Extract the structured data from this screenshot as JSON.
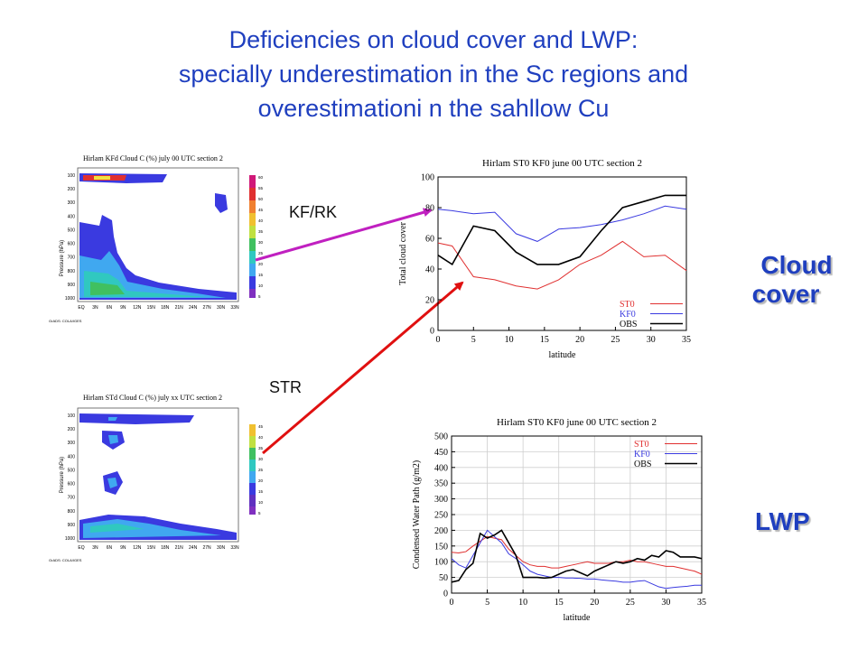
{
  "slide": {
    "title_line1": "Deficiencies on cloud cover and LWP:",
    "title_line2": "specially underestimation in the Sc regions and",
    "title_line3": "overestimationi n the sahllow Cu",
    "arrow_top_label": "KF/RK",
    "arrow_bottom_label": "STR",
    "side_label_cloud_line1": "Cloud",
    "side_label_cloud_line2": "cover",
    "side_label_lwp": "LWP"
  },
  "crosssections": [
    {
      "title": "Hirlam KFd Cloud C (%) july 00 UTC section 2",
      "ylabel": "Pressure (hPa)",
      "yticks": [
        "100",
        "200",
        "300",
        "400",
        "500",
        "600",
        "700",
        "800",
        "900",
        "1000"
      ],
      "xticks": [
        "EQ",
        "3N",
        "6N",
        "9N",
        "12N",
        "15N",
        "18N",
        "21N",
        "24N",
        "27N",
        "30N",
        "33N"
      ],
      "colorbar_ticks": [
        "60",
        "55",
        "50",
        "45",
        "40",
        "35",
        "30",
        "25",
        "20",
        "15",
        "10",
        "5"
      ],
      "footer": "GrADS: COLA/IGES"
    },
    {
      "title": "Hirlam STd Cloud C (%) july xx UTC section 2",
      "ylabel": "Pressure (hPa)",
      "yticks": [
        "100",
        "200",
        "300",
        "400",
        "500",
        "600",
        "700",
        "800",
        "900",
        "1000"
      ],
      "xticks": [
        "EQ",
        "3N",
        "6N",
        "9N",
        "12N",
        "15N",
        "18N",
        "21N",
        "24N",
        "27N",
        "30N",
        "33N"
      ],
      "colorbar_ticks": [
        "45",
        "40",
        "35",
        "30",
        "25",
        "20",
        "15",
        "10",
        "5"
      ],
      "footer": "GrADS: COLA/IGES"
    }
  ],
  "chart_data": [
    {
      "type": "line",
      "title": "Hirlam ST0 KF0   june 00 UTC section 2",
      "xlabel": "latitude",
      "ylabel": "Total cloud cover",
      "xlim": [
        0,
        35
      ],
      "ylim": [
        0,
        100
      ],
      "xticks": [
        0,
        5,
        10,
        15,
        20,
        25,
        30,
        35
      ],
      "yticks": [
        0,
        20,
        40,
        60,
        80,
        100
      ],
      "legend": "bottom-right",
      "grid": false,
      "x": [
        0,
        2,
        5,
        8,
        11,
        14,
        17,
        20,
        23,
        26,
        29,
        32,
        35
      ],
      "series": [
        {
          "name": "ST0",
          "color": "#e03030",
          "values": [
            57,
            55,
            35,
            33,
            29,
            27,
            33,
            43,
            49,
            58,
            48,
            49,
            39
          ]
        },
        {
          "name": "KF0",
          "color": "#3a3ae0",
          "values": [
            79,
            78,
            76,
            77,
            63,
            58,
            66,
            67,
            69,
            72,
            76,
            81,
            79
          ]
        },
        {
          "name": "OBS",
          "color": "#000000",
          "values": [
            49,
            43,
            68,
            65,
            51,
            43,
            43,
            48,
            65,
            80,
            84,
            88,
            88
          ]
        }
      ]
    },
    {
      "type": "line",
      "title": "Hirlam ST0 KF0   june 00 UTC section 2",
      "xlabel": "latitude",
      "ylabel": "Condensed Water Path (g/m2)",
      "xlim": [
        0,
        35
      ],
      "ylim": [
        0,
        500
      ],
      "xticks": [
        0,
        5,
        10,
        15,
        20,
        25,
        30,
        35
      ],
      "yticks": [
        0,
        50,
        100,
        150,
        200,
        250,
        300,
        350,
        400,
        450,
        500
      ],
      "legend": "top-right",
      "grid": true,
      "x": [
        0,
        1,
        2,
        3,
        4,
        5,
        6,
        7,
        8,
        9,
        10,
        11,
        12,
        13,
        14,
        15,
        16,
        17,
        18,
        19,
        20,
        21,
        22,
        23,
        24,
        25,
        26,
        27,
        28,
        29,
        30,
        31,
        32,
        33,
        34,
        35
      ],
      "series": [
        {
          "name": "ST0",
          "color": "#e03030",
          "values": [
            130,
            128,
            132,
            150,
            165,
            180,
            175,
            170,
            140,
            120,
            100,
            90,
            85,
            85,
            80,
            80,
            85,
            90,
            95,
            100,
            95,
            95,
            95,
            100,
            100,
            105,
            100,
            100,
            95,
            90,
            85,
            85,
            80,
            75,
            70,
            60
          ]
        },
        {
          "name": "KF0",
          "color": "#3a3ae0",
          "values": [
            110,
            90,
            80,
            120,
            160,
            200,
            180,
            160,
            125,
            110,
            90,
            70,
            60,
            55,
            50,
            50,
            48,
            48,
            47,
            45,
            45,
            42,
            40,
            38,
            35,
            35,
            38,
            40,
            30,
            20,
            15,
            18,
            20,
            22,
            25,
            25
          ]
        },
        {
          "name": "OBS",
          "color": "#000000",
          "values": [
            35,
            40,
            75,
            95,
            190,
            175,
            185,
            200,
            160,
            120,
            50,
            50,
            50,
            48,
            50,
            60,
            70,
            75,
            65,
            55,
            70,
            80,
            90,
            100,
            95,
            100,
            110,
            105,
            120,
            115,
            135,
            130,
            115,
            115,
            115,
            110
          ]
        }
      ]
    }
  ]
}
